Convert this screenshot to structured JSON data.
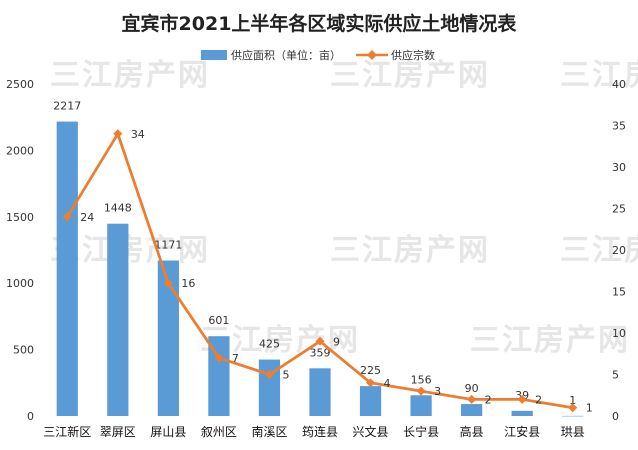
{
  "chart_data": {
    "type": "bar",
    "title": "宜宾市2021上半年各区域实际供应土地情况表",
    "categories": [
      "三江新区",
      "翠屏区",
      "屏山县",
      "叙州区",
      "南溪区",
      "筠连县",
      "兴文县",
      "长宁县",
      "高县",
      "江安县",
      "珙县"
    ],
    "series": [
      {
        "name": "供应面积（单位：亩）",
        "type": "bar",
        "axis": "left",
        "color": "#5b9bd5",
        "values": [
          2217,
          1448,
          1171,
          601,
          425,
          359,
          225,
          156,
          90,
          39,
          1
        ],
        "labels": [
          "2217",
          "1448",
          "1171",
          "601",
          "425",
          "359",
          "225",
          "156",
          "90",
          "39",
          "1"
        ]
      },
      {
        "name": "供应宗数",
        "type": "line",
        "axis": "right",
        "color": "#ed7d31",
        "values": [
          24,
          34,
          16,
          7,
          5,
          9,
          4,
          3,
          2,
          2,
          1
        ],
        "labels": [
          "24",
          "34",
          "16",
          "7",
          "5",
          "9",
          "4",
          "3",
          "2",
          "2",
          "1"
        ]
      }
    ],
    "y_left": {
      "min": 0,
      "max": 2500,
      "ticks": [
        "0",
        "500",
        "1000",
        "1500",
        "2000",
        "2500"
      ]
    },
    "y_right": {
      "min": 0,
      "max": 40,
      "ticks": [
        "0",
        "5",
        "10",
        "15",
        "20",
        "25",
        "30",
        "35",
        "40"
      ]
    },
    "legend_position": "top-center",
    "grid": false
  },
  "watermark": "三江房产网"
}
